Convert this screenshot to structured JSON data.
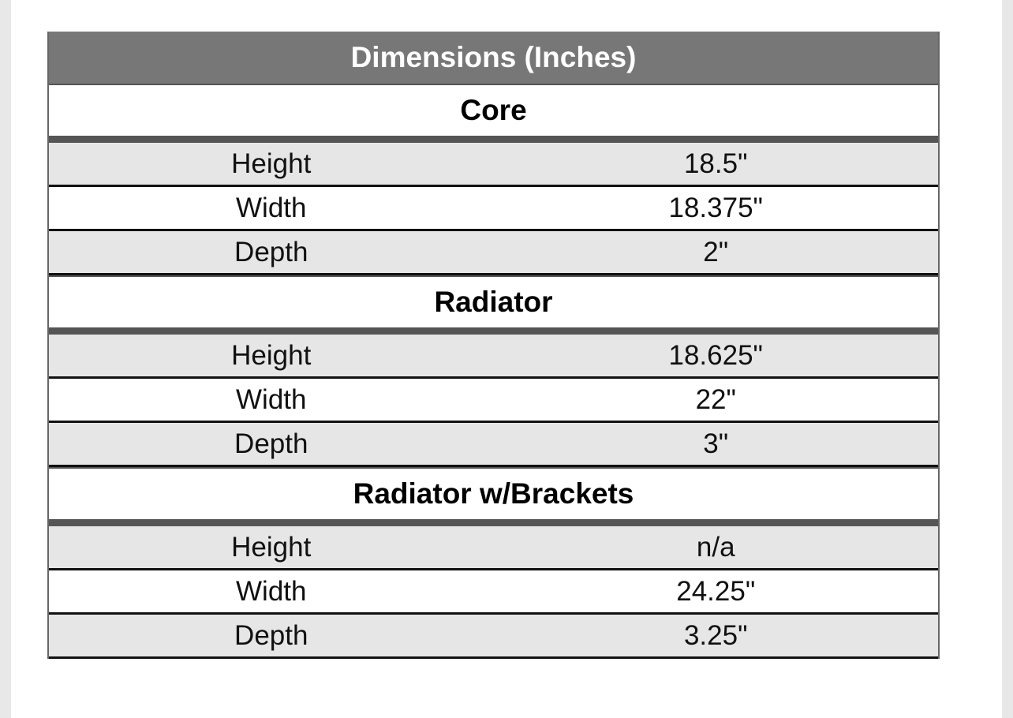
{
  "table": {
    "title": "Dimensions (Inches)",
    "sections": [
      {
        "title": "Core",
        "rows": [
          [
            "Height",
            "18.5\""
          ],
          [
            "Width",
            "18.375\""
          ],
          [
            "Depth",
            "2\""
          ]
        ]
      },
      {
        "title": "Radiator",
        "rows": [
          [
            "Height",
            "18.625\""
          ],
          [
            "Width",
            "22\""
          ],
          [
            "Depth",
            "3\""
          ]
        ]
      },
      {
        "title": "Radiator w/Brackets",
        "rows": [
          [
            "Height",
            "n/a"
          ],
          [
            "Width",
            "24.25\""
          ],
          [
            "Depth",
            "3.25\""
          ]
        ]
      }
    ]
  }
}
